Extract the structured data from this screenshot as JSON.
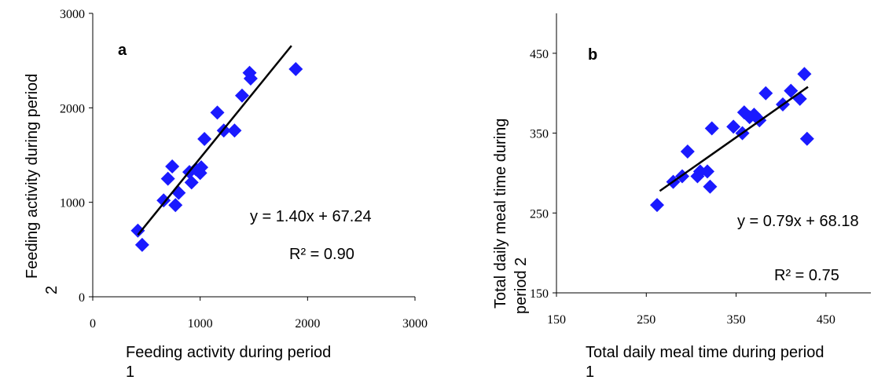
{
  "colors": {
    "marker": "#1a1aff",
    "line": "#000000",
    "axis": "#000000"
  },
  "chart_data": [
    {
      "type": "scatter",
      "panel_label": "a",
      "xlabel_lines": [
        "Feeding activity during period",
        "1"
      ],
      "ylabel_lines": [
        "Feeding activity during period",
        "2"
      ],
      "xlim": [
        0,
        3000
      ],
      "ylim": [
        0,
        3000
      ],
      "xticks": [
        0,
        1000,
        2000,
        3000
      ],
      "yticks": [
        0,
        1000,
        2000,
        3000
      ],
      "x_tick_labels": [
        "0",
        "1000",
        "2000",
        "3000"
      ],
      "y_tick_labels": [
        "0",
        "1000",
        "2000",
        "3000"
      ],
      "points": [
        [
          420,
          700
        ],
        [
          460,
          550
        ],
        [
          660,
          1020
        ],
        [
          700,
          1250
        ],
        [
          740,
          1380
        ],
        [
          770,
          970
        ],
        [
          800,
          1100
        ],
        [
          900,
          1320
        ],
        [
          920,
          1210
        ],
        [
          960,
          1350
        ],
        [
          1010,
          1370
        ],
        [
          1000,
          1310
        ],
        [
          1040,
          1670
        ],
        [
          1160,
          1950
        ],
        [
          1220,
          1760
        ],
        [
          1320,
          1760
        ],
        [
          1390,
          2130
        ],
        [
          1460,
          2370
        ],
        [
          1470,
          2310
        ],
        [
          1890,
          2410
        ]
      ],
      "trendline": {
        "slope": 1.4,
        "intercept": 67.24,
        "x_range": [
          420,
          1850
        ]
      },
      "equation": "y = 1.40x + 67.24",
      "r2": "R² = 0.90",
      "grid": false
    },
    {
      "type": "scatter",
      "panel_label": "b",
      "xlabel_lines": [
        "Total daily meal time during period",
        "1"
      ],
      "ylabel_lines": [
        "Total daily meal time during",
        "period 2"
      ],
      "xlim": [
        150,
        500
      ],
      "ylim": [
        150,
        500
      ],
      "xticks": [
        150,
        250,
        350,
        450
      ],
      "yticks": [
        150,
        250,
        350,
        450
      ],
      "x_tick_labels": [
        "150",
        "250",
        "350",
        "450"
      ],
      "y_tick_labels": [
        "150",
        "250",
        "350",
        "450"
      ],
      "points": [
        [
          262,
          260
        ],
        [
          280,
          289
        ],
        [
          290,
          296
        ],
        [
          296,
          327
        ],
        [
          307,
          296
        ],
        [
          310,
          302
        ],
        [
          318,
          302
        ],
        [
          321,
          283
        ],
        [
          323,
          356
        ],
        [
          347,
          358
        ],
        [
          357,
          350
        ],
        [
          359,
          376
        ],
        [
          365,
          370
        ],
        [
          370,
          373
        ],
        [
          376,
          366
        ],
        [
          383,
          400
        ],
        [
          402,
          386
        ],
        [
          411,
          403
        ],
        [
          421,
          393
        ],
        [
          426,
          424
        ],
        [
          429,
          343
        ]
      ],
      "trendline": {
        "slope": 0.79,
        "intercept": 68.18,
        "x_range": [
          265,
          430
        ]
      },
      "equation": "y = 0.79x + 68.18",
      "r2": "R² = 0.75",
      "grid": false
    }
  ]
}
